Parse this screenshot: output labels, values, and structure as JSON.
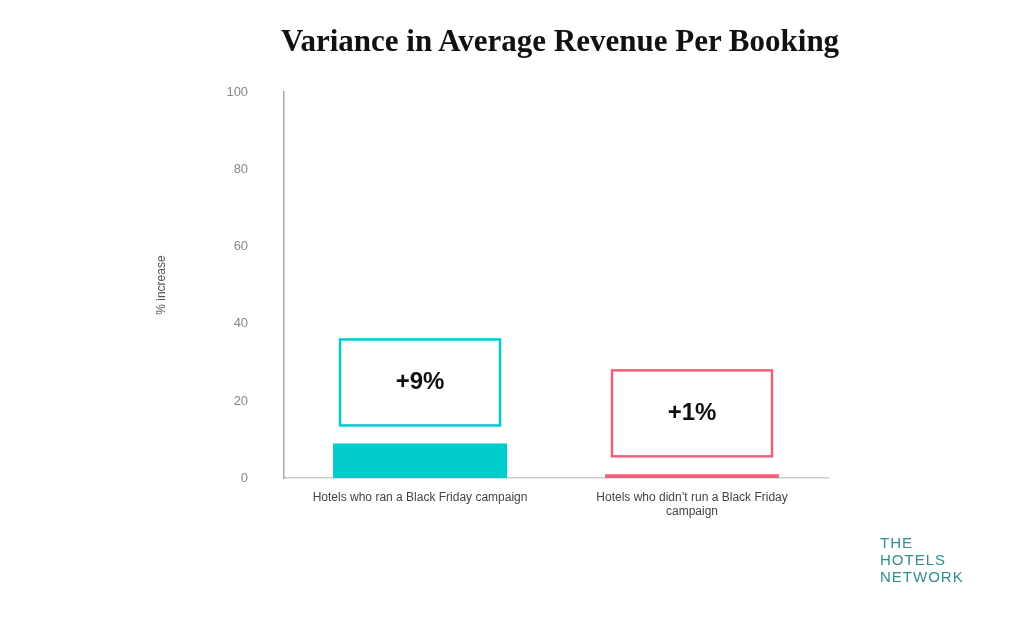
{
  "chart_data": {
    "type": "bar",
    "title": "Variance in Average Revenue Per Booking",
    "y_label": "% increase",
    "categories": [
      "Hotels who ran a Black Friday campaign",
      "Hotels who didn’t run a Black Friday campaign"
    ],
    "values": [
      9,
      1
    ],
    "value_labels": [
      "+9%",
      "+1%"
    ],
    "colors": [
      "#00cccc",
      "#f0607a"
    ],
    "ylim": [
      0,
      100
    ],
    "yticks": [
      0,
      20,
      40,
      60,
      80,
      100
    ],
    "grid": false,
    "data_labels": true,
    "annotation": "THE HOTELS NETWORK"
  }
}
